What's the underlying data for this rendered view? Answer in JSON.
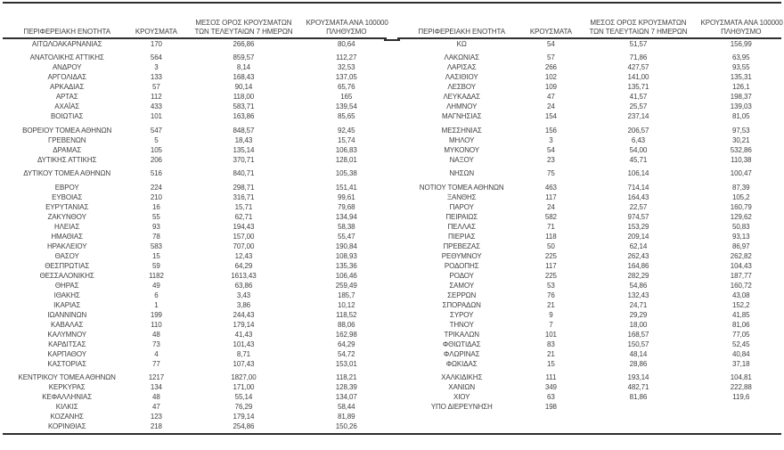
{
  "theme": {
    "text": "#3f3f3f",
    "line": "#2e2e2e",
    "bg": "#ffffff"
  },
  "columns": [
    "ΠΕΡΙΦΕΡΕΙΑΚΗ ΕΝΟΤΗΤΑ",
    "ΚΡΟΥΣΜΑΤΑ",
    "ΜΕΣΟΣ ΟΡΟΣ ΚΡΟΥΣΜΑΤΩΝ\nΤΩΝ ΤΕΛΕΥΤΑΙΩΝ 7 ΗΜΕΡΩΝ",
    "ΚΡΟΥΣΜΑΤΑ ΑΝΑ 100000\nΠΛΗΘΥΣΜΟ"
  ],
  "left_table": {
    "rows": [
      [
        "ΑΙΤΩΛΟΑΚΑΡΝΑΝΙΑΣ",
        "170",
        "266,86",
        "80,64"
      ],
      null,
      [
        "ΑΝΑΤΟΛΙΚΗΣ ΑΤΤΙΚΗΣ",
        "564",
        "859,57",
        "112,27"
      ],
      [
        "ΑΝΔΡΟΥ",
        "3",
        "8,14",
        "32,53"
      ],
      [
        "ΑΡΓΟΛΙΔΑΣ",
        "133",
        "168,43",
        "137,05"
      ],
      [
        "ΑΡΚΑΔΙΑΣ",
        "57",
        "90,14",
        "65,76"
      ],
      [
        "ΑΡΤΑΣ",
        "112",
        "118,00",
        "165"
      ],
      [
        "ΑΧΑΪΑΣ",
        "433",
        "583,71",
        "139,54"
      ],
      [
        "ΒΟΙΩΤΙΑΣ",
        "101",
        "163,86",
        "85,65"
      ],
      null,
      [
        "ΒΟΡΕΙΟΥ ΤΟΜΕΑ ΑΘΗΝΩΝ",
        "547",
        "848,57",
        "92,45"
      ],
      [
        "ΓΡΕΒΕΝΩΝ",
        "5",
        "18,43",
        "15,74"
      ],
      [
        "ΔΡΑΜΑΣ",
        "105",
        "135,14",
        "106,83"
      ],
      [
        "ΔΥΤΙΚΗΣ ΑΤΤΙΚΗΣ",
        "206",
        "370,71",
        "128,01"
      ],
      null,
      [
        "ΔΥΤΙΚΟΥ ΤΟΜΕΑ ΑΘΗΝΩΝ",
        "516",
        "840,71",
        "105,38"
      ],
      null,
      [
        "ΕΒΡΟΥ",
        "224",
        "298,71",
        "151,41"
      ],
      [
        "ΕΥΒΟΙΑΣ",
        "210",
        "316,71",
        "99,61"
      ],
      [
        "ΕΥΡΥΤΑΝΙΑΣ",
        "16",
        "15,71",
        "79,68"
      ],
      [
        "ΖΑΚΥΝΘΟΥ",
        "55",
        "62,71",
        "134,94"
      ],
      [
        "ΗΛΕΙΑΣ",
        "93",
        "194,43",
        "58,38"
      ],
      [
        "ΗΜΑΘΙΑΣ",
        "78",
        "157,00",
        "55,47"
      ],
      [
        "ΗΡΑΚΛΕΙΟΥ",
        "583",
        "707,00",
        "190,84"
      ],
      [
        "ΘΑΣΟΥ",
        "15",
        "12,43",
        "108,93"
      ],
      [
        "ΘΕΣΠΡΩΤΙΑΣ",
        "59",
        "64,29",
        "135,36"
      ],
      [
        "ΘΕΣΣΑΛΟΝΙΚΗΣ",
        "1182",
        "1613,43",
        "106,46"
      ],
      [
        "ΘΗΡΑΣ",
        "49",
        "63,86",
        "259,49"
      ],
      [
        "ΙΘΑΚΗΣ",
        "6",
        "3,43",
        "185,7"
      ],
      [
        "ΙΚΑΡΙΑΣ",
        "1",
        "3,86",
        "10,12"
      ],
      [
        "ΙΩΑΝΝΙΝΩΝ",
        "199",
        "244,43",
        "118,52"
      ],
      [
        "ΚΑΒΑΛΑΣ",
        "110",
        "179,14",
        "88,06"
      ],
      [
        "ΚΑΛΥΜΝΟΥ",
        "48",
        "41,43",
        "162,98"
      ],
      [
        "ΚΑΡΔΙΤΣΑΣ",
        "73",
        "101,43",
        "64,29"
      ],
      [
        "ΚΑΡΠΑΘΟΥ",
        "4",
        "8,71",
        "54,72"
      ],
      [
        "ΚΑΣΤΟΡΙΑΣ",
        "77",
        "107,43",
        "153,01"
      ],
      null,
      [
        "ΚΕΝΤΡΙΚΟΥ ΤΟΜΕΑ ΑΘΗΝΩΝ",
        "1217",
        "1827,00",
        "118,21"
      ],
      [
        "ΚΕΡΚΥΡΑΣ",
        "134",
        "171,00",
        "128,39"
      ],
      [
        "ΚΕΦΑΛΛΗΝΙΑΣ",
        "48",
        "55,14",
        "134,07"
      ],
      [
        "ΚΙΛΚΙΣ",
        "47",
        "76,29",
        "58,44"
      ],
      [
        "ΚΟΖΑΝΗΣ",
        "123",
        "179,14",
        "81,89"
      ],
      [
        "ΚΟΡΙΝΘΙΑΣ",
        "218",
        "254,86",
        "150,26"
      ]
    ]
  },
  "right_table": {
    "rows": [
      [
        "ΚΩ",
        "54",
        "51,57",
        "156,99"
      ],
      null,
      [
        "ΛΑΚΩΝΙΑΣ",
        "57",
        "71,86",
        "63,95"
      ],
      [
        "ΛΑΡΙΣΑΣ",
        "266",
        "427,57",
        "93,55"
      ],
      [
        "ΛΑΣΙΘΙΟΥ",
        "102",
        "141,00",
        "135,31"
      ],
      [
        "ΛΕΣΒΟΥ",
        "109",
        "135,71",
        "126,1"
      ],
      [
        "ΛΕΥΚΑΔΑΣ",
        "47",
        "41,57",
        "198,37"
      ],
      [
        "ΛΗΜΝΟΥ",
        "24",
        "25,57",
        "139,03"
      ],
      [
        "ΜΑΓΝΗΣΙΑΣ",
        "154",
        "237,14",
        "81,05"
      ],
      null,
      [
        "ΜΕΣΣΗΝΙΑΣ",
        "156",
        "206,57",
        "97,53"
      ],
      [
        "ΜΗΛΟΥ",
        "3",
        "6,43",
        "30,21"
      ],
      [
        "ΜΥΚΟΝΟΥ",
        "54",
        "54,00",
        "532,86"
      ],
      [
        "ΝΑΞΟΥ",
        "23",
        "45,71",
        "110,38"
      ],
      null,
      [
        "ΝΗΣΩΝ",
        "75",
        "106,14",
        "100,47"
      ],
      null,
      [
        "ΝΟΤΙΟΥ ΤΟΜΕΑ ΑΘΗΝΩΝ",
        "463",
        "714,14",
        "87,39"
      ],
      [
        "ΞΑΝΘΗΣ",
        "117",
        "164,43",
        "105,2"
      ],
      [
        "ΠΑΡΟΥ",
        "24",
        "22,57",
        "160,79"
      ],
      [
        "ΠΕΙΡΑΙΩΣ",
        "582",
        "974,57",
        "129,62"
      ],
      [
        "ΠΕΛΛΑΣ",
        "71",
        "153,29",
        "50,83"
      ],
      [
        "ΠΙΕΡΙΑΣ",
        "118",
        "209,14",
        "93,13"
      ],
      [
        "ΠΡΕΒΕΖΑΣ",
        "50",
        "62,14",
        "86,97"
      ],
      [
        "ΡΕΘΥΜΝΟΥ",
        "225",
        "262,43",
        "262,82"
      ],
      [
        "ΡΟΔΟΠΗΣ",
        "117",
        "164,86",
        "104,43"
      ],
      [
        "ΡΟΔΟΥ",
        "225",
        "282,29",
        "187,77"
      ],
      [
        "ΣΑΜΟΥ",
        "53",
        "54,86",
        "160,72"
      ],
      [
        "ΣΕΡΡΩΝ",
        "76",
        "132,43",
        "43,08"
      ],
      [
        "ΣΠΟΡΑΔΩΝ",
        "21",
        "24,71",
        "152,2"
      ],
      [
        "ΣΥΡΟΥ",
        "9",
        "29,29",
        "41,85"
      ],
      [
        "ΤΗΝΟΥ",
        "7",
        "18,00",
        "81,06"
      ],
      [
        "ΤΡΙΚΑΛΩΝ",
        "101",
        "168,57",
        "77,05"
      ],
      [
        "ΦΘΙΩΤΙΔΑΣ",
        "83",
        "150,57",
        "52,45"
      ],
      [
        "ΦΛΩΡΙΝΑΣ",
        "21",
        "48,14",
        "40,84"
      ],
      [
        "ΦΩΚΙΔΑΣ",
        "15",
        "28,86",
        "37,18"
      ],
      null,
      [
        "ΧΑΛΚΙΔΙΚΗΣ",
        "111",
        "193,14",
        "104,81"
      ],
      [
        "ΧΑΝΙΩΝ",
        "349",
        "482,71",
        "222,88"
      ],
      [
        "ΧΙΟΥ",
        "63",
        "81,86",
        "119,6"
      ],
      [
        "ΥΠΟ ΔΙΕΡΕΥΝΗΣΗ",
        "198",
        "",
        ""
      ]
    ]
  }
}
